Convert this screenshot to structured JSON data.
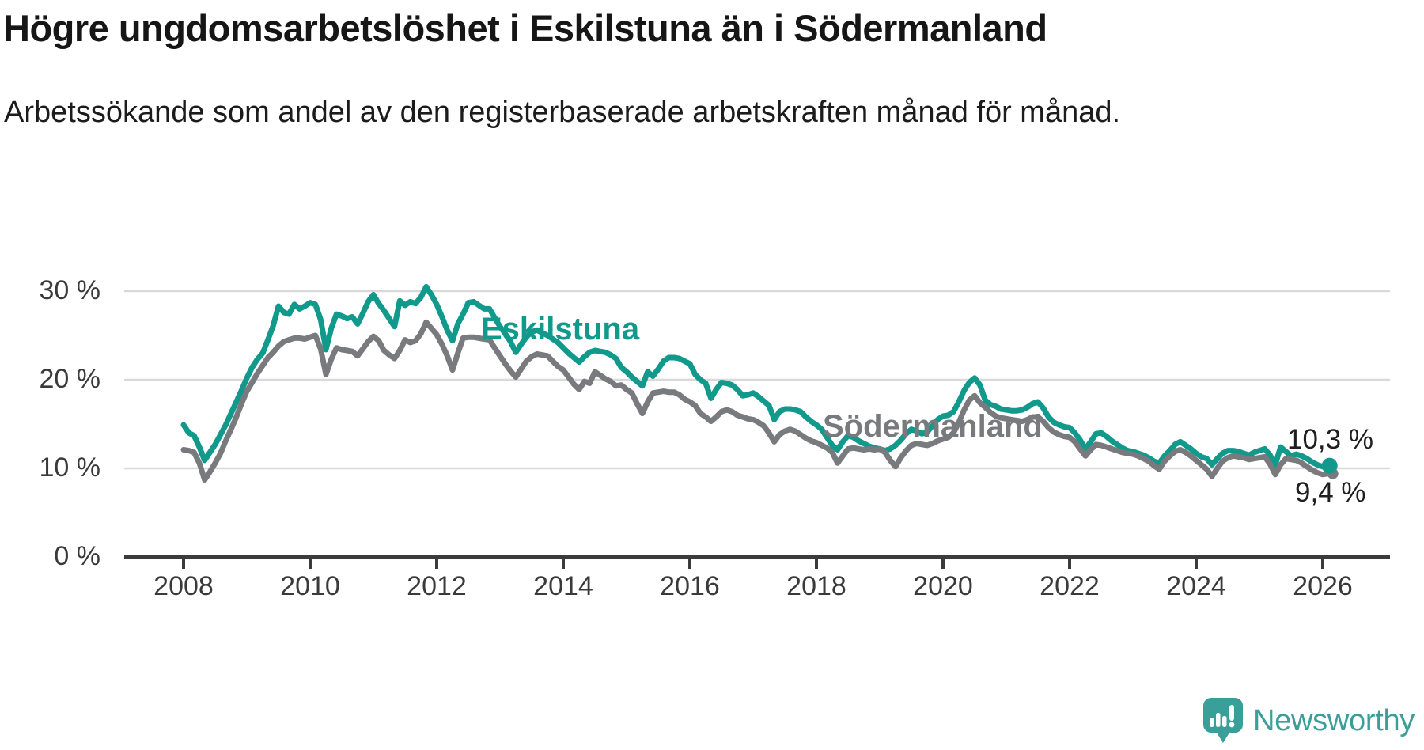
{
  "header": {
    "title": "Högre ungdomsarbetslöshet i Eskilstuna än i Södermanland",
    "subtitle": "Arbetssökande som andel av den registerbaserade arbetskraften månad för månad."
  },
  "footer": {
    "brand": "Newsworthy",
    "logo_icon": "speech-bubble-bar-chart-icon"
  },
  "colors": {
    "eskilstuna": "#11998c",
    "sodermanland": "#797a7e",
    "grid": "#d9d9d9",
    "axis": "#3b3b3b",
    "tick_text": "#3a3a3a",
    "value_text": "#1f1f1f",
    "brand_teal": "#3a9e99"
  },
  "chart_data": {
    "type": "line",
    "title": "Högre ungdomsarbetslöshet i Eskilstuna än i Södermanland",
    "subtitle": "Arbetssökande som andel av den registerbaserade arbetskraften månad för månad.",
    "unit": "%",
    "grid": "horizontal",
    "legend_position": "inline-labels",
    "x_start": {
      "year": 2008,
      "month": 1
    },
    "x_end": {
      "year": 2026,
      "month": 2
    },
    "frequency": "monthly",
    "x_ticks": [
      2008,
      2010,
      2012,
      2014,
      2016,
      2018,
      2020,
      2022,
      2024,
      2026
    ],
    "y_ticks": [
      {
        "value": 0,
        "label": "0 %"
      },
      {
        "value": 10,
        "label": "10 %"
      },
      {
        "value": 20,
        "label": "20 %"
      },
      {
        "value": 30,
        "label": "30 %"
      }
    ],
    "ylim": [
      0,
      32.5
    ],
    "series": [
      {
        "name": "Eskilstuna",
        "color": "#11998c",
        "end_label": "10,3 %",
        "end_value": 10.3,
        "values": [
          14.9,
          14.0,
          13.7,
          12.4,
          10.9,
          11.8,
          12.7,
          13.8,
          14.9,
          16.2,
          17.5,
          18.8,
          20.2,
          21.4,
          22.3,
          23.0,
          24.5,
          26.1,
          28.3,
          27.6,
          27.4,
          28.5,
          28.0,
          28.3,
          28.7,
          28.5,
          26.8,
          23.4,
          25.8,
          27.4,
          27.2,
          26.9,
          27.1,
          26.3,
          27.5,
          28.8,
          29.6,
          28.6,
          27.8,
          26.9,
          26.0,
          28.9,
          28.4,
          28.8,
          28.6,
          29.3,
          30.5,
          29.6,
          28.5,
          27.1,
          25.6,
          24.4,
          26.3,
          27.4,
          28.7,
          28.8,
          28.4,
          28.0,
          28.0,
          27.0,
          26.0,
          25.2,
          24.3,
          23.1,
          24.0,
          24.8,
          25.4,
          25.6,
          25.3,
          25.0,
          24.6,
          24.2,
          23.6,
          23.0,
          22.5,
          22.0,
          22.6,
          23.1,
          23.3,
          23.2,
          23.1,
          22.8,
          22.4,
          21.4,
          20.9,
          20.3,
          19.8,
          19.3,
          20.9,
          20.4,
          21.2,
          22.1,
          22.5,
          22.5,
          22.4,
          22.1,
          21.8,
          20.6,
          20.0,
          19.6,
          17.9,
          18.9,
          19.7,
          19.6,
          19.4,
          18.9,
          18.2,
          18.3,
          18.5,
          18.1,
          17.6,
          17.1,
          15.5,
          16.4,
          16.7,
          16.7,
          16.6,
          16.4,
          15.8,
          15.3,
          14.9,
          14.4,
          13.5,
          12.6,
          12.1,
          13.0,
          13.7,
          13.5,
          13.1,
          12.8,
          12.5,
          12.3,
          12.2,
          12.0,
          12.2,
          12.6,
          13.2,
          13.9,
          14.4,
          14.2,
          13.9,
          14.1,
          14.8,
          15.5,
          15.9,
          16.0,
          16.4,
          17.5,
          18.8,
          19.7,
          20.2,
          19.4,
          17.7,
          17.2,
          17.0,
          16.7,
          16.6,
          16.5,
          16.5,
          16.6,
          16.9,
          17.3,
          17.5,
          16.8,
          15.8,
          15.2,
          14.9,
          14.7,
          14.6,
          14.0,
          13.2,
          12.2,
          13.0,
          13.9,
          14.0,
          13.6,
          13.1,
          12.7,
          12.3,
          12.0,
          11.9,
          11.7,
          11.5,
          11.2,
          10.8,
          10.6,
          11.4,
          12.0,
          12.7,
          13.0,
          12.6,
          12.2,
          11.7,
          11.3,
          11.1,
          10.4,
          11.1,
          11.7,
          12.0,
          12.0,
          11.9,
          11.7,
          11.5,
          11.8,
          12.0,
          12.2,
          11.5,
          10.4,
          12.4,
          11.9,
          11.4,
          11.6,
          11.4,
          11.1,
          10.7,
          10.4,
          10.2,
          10.3
        ]
      },
      {
        "name": "Södermanland",
        "color": "#797a7e",
        "end_label": "9,4 %",
        "end_value": 9.4,
        "values": [
          12.1,
          12.0,
          11.8,
          10.6,
          8.7,
          9.6,
          10.6,
          11.7,
          13.1,
          14.4,
          15.8,
          17.3,
          18.7,
          19.7,
          20.7,
          21.6,
          22.5,
          23.1,
          23.8,
          24.3,
          24.5,
          24.7,
          24.7,
          24.6,
          24.8,
          25.0,
          23.5,
          20.6,
          22.3,
          23.6,
          23.4,
          23.3,
          23.2,
          22.7,
          23.5,
          24.3,
          24.9,
          24.4,
          23.3,
          22.8,
          22.4,
          23.3,
          24.5,
          24.2,
          24.4,
          25.2,
          26.5,
          25.8,
          25.1,
          24.0,
          22.7,
          21.1,
          23.0,
          24.7,
          24.8,
          24.8,
          24.7,
          24.6,
          24.5,
          23.6,
          22.7,
          21.8,
          21.0,
          20.3,
          21.2,
          22.1,
          22.6,
          22.9,
          22.8,
          22.7,
          22.1,
          21.5,
          21.1,
          20.3,
          19.5,
          18.9,
          19.8,
          19.6,
          20.9,
          20.5,
          20.1,
          19.8,
          19.3,
          19.4,
          18.9,
          18.5,
          17.3,
          16.2,
          17.5,
          18.5,
          18.6,
          18.7,
          18.6,
          18.6,
          18.3,
          17.8,
          17.5,
          17.1,
          16.2,
          15.8,
          15.3,
          15.8,
          16.4,
          16.6,
          16.4,
          16.0,
          15.8,
          15.6,
          15.5,
          15.2,
          14.8,
          14.0,
          13.0,
          13.8,
          14.2,
          14.4,
          14.2,
          13.8,
          13.4,
          13.1,
          12.9,
          12.6,
          12.3,
          11.8,
          10.6,
          11.4,
          12.2,
          12.3,
          12.2,
          12.1,
          12.2,
          12.1,
          12.2,
          11.8,
          10.9,
          10.2,
          11.2,
          12.0,
          12.6,
          12.8,
          12.7,
          12.6,
          12.8,
          13.1,
          13.3,
          13.5,
          14.0,
          15.2,
          16.6,
          17.7,
          18.2,
          17.4,
          16.9,
          16.3,
          15.9,
          15.7,
          15.6,
          15.5,
          15.4,
          15.3,
          15.5,
          15.8,
          15.8,
          15.3,
          14.6,
          14.1,
          13.8,
          13.6,
          13.5,
          13.0,
          12.2,
          11.4,
          12.1,
          12.7,
          12.6,
          12.4,
          12.2,
          12.0,
          11.8,
          11.7,
          11.6,
          11.4,
          11.1,
          10.8,
          10.3,
          9.9,
          10.8,
          11.4,
          11.9,
          12.1,
          11.8,
          11.4,
          10.9,
          10.4,
          9.9,
          9.1,
          10.0,
          10.8,
          11.2,
          11.4,
          11.3,
          11.2,
          11.0,
          11.1,
          11.2,
          11.3,
          10.5,
          9.3,
          10.4,
          11.1,
          11.0,
          10.9,
          10.6,
          10.2,
          9.8,
          9.5,
          9.3,
          9.4
        ]
      }
    ]
  }
}
